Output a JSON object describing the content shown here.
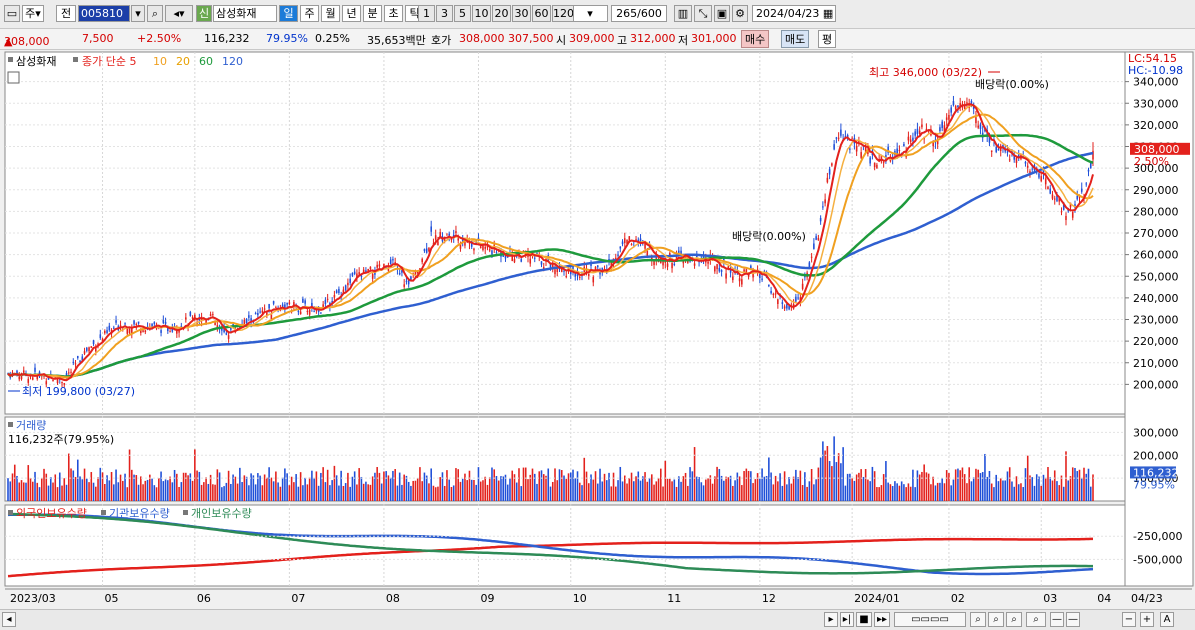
{
  "toolbar": {
    "period_day": "주",
    "prev": "전",
    "code": "005810",
    "name": "삼성화재",
    "market_badge": "신",
    "tabs": [
      "일",
      "주",
      "월",
      "년",
      "분",
      "초",
      "틱"
    ],
    "nums": [
      "1",
      "3",
      "5",
      "10",
      "20",
      "30",
      "60",
      "120"
    ],
    "count": "265",
    "count_max": "/600",
    "date": "2024/04/23"
  },
  "quote": {
    "price": "308,000",
    "arrow": "▲",
    "change": "7,500",
    "change_pct": "+2.50%",
    "volume": "116,232",
    "vol_ratio": "79.95%",
    "turnover": "0.25%",
    "amount": "35,653백만",
    "ask_label": "호가",
    "ask": "308,000",
    "bid": "307,500",
    "open_label": "시",
    "open": "309,000",
    "high_label": "고",
    "high": "312,000",
    "low_label": "저",
    "low": "301,000",
    "buy": "매수",
    "sell": "매도",
    "eval": "평"
  },
  "legend": {
    "name": "삼성화재",
    "series_label": "종가 단순",
    "ma": [
      "5",
      "10",
      "20",
      "60",
      "120"
    ]
  },
  "annotations": {
    "high": "최고 346,000 (03/22)",
    "low": "최저 199,800 (03/27)",
    "div1": "배당락(0.00%)",
    "div2": "배당락(0.00%)",
    "lc": "LC:54.15",
    "hc": "HC:-10.98",
    "price_tag": "308,000",
    "pct_tag": "2.50%"
  },
  "volume_panel": {
    "title": "거래량",
    "sub": "116,232주(79.95%)",
    "tag": "116,232",
    "tag_pct": "79.95%"
  },
  "holding_panel": {
    "legend": [
      "외국인보유수량",
      "기관보유수량",
      "개인보유수량"
    ]
  },
  "colors": {
    "up": "#e3211c",
    "down": "#1f4fd8",
    "ma5": "#e3211c",
    "ma10": "#f0a020",
    "ma20": "#f0a020",
    "ma60": "#1e9a3c",
    "ma120": "#2f5fd0",
    "foreign": "#e3211c",
    "inst": "#2f5fd0",
    "indiv": "#2e8b57"
  },
  "chart_data": {
    "type": "candlestick",
    "x_ticks": [
      "2023/03",
      "05",
      "06",
      "07",
      "08",
      "09",
      "10",
      "11",
      "12",
      "2024/01",
      "02",
      "03",
      "04",
      "04/23"
    ],
    "y_ticks": [
      "200,000",
      "210,000",
      "220,000",
      "230,000",
      "240,000",
      "250,000",
      "260,000",
      "270,000",
      "280,000",
      "290,000",
      "300,000",
      "310,000",
      "320,000",
      "330,000",
      "340,000"
    ],
    "ylim": [
      190000,
      350000
    ],
    "close_anchors": [
      [
        0,
        205000
      ],
      [
        15,
        204000
      ],
      [
        25,
        202000
      ],
      [
        35,
        216000
      ],
      [
        50,
        228000
      ],
      [
        70,
        226000
      ],
      [
        90,
        232000
      ],
      [
        95,
        223000
      ],
      [
        120,
        236000
      ],
      [
        140,
        235000
      ],
      [
        155,
        250000
      ],
      [
        172,
        255000
      ],
      [
        178,
        245000
      ],
      [
        188,
        268000
      ],
      [
        200,
        268000
      ],
      [
        215,
        262000
      ],
      [
        235,
        258000
      ],
      [
        250,
        252000
      ],
      [
        265,
        252000
      ],
      [
        275,
        268000
      ],
      [
        290,
        258000
      ],
      [
        310,
        258000
      ],
      [
        322,
        252000
      ],
      [
        335,
        250000
      ],
      [
        345,
        236000
      ],
      [
        350,
        236000
      ],
      [
        360,
        270000
      ],
      [
        368,
        315000
      ],
      [
        378,
        310000
      ],
      [
        385,
        303000
      ],
      [
        395,
        305000
      ],
      [
        405,
        318000
      ],
      [
        412,
        315000
      ],
      [
        420,
        328000
      ],
      [
        428,
        330000
      ],
      [
        435,
        312000
      ],
      [
        448,
        305000
      ],
      [
        458,
        298000
      ],
      [
        470,
        280000
      ],
      [
        478,
        287000
      ],
      [
        482,
        308000
      ]
    ],
    "volume_ticks": [
      "100,000",
      "200,000",
      "300,000"
    ],
    "volume_ylim": [
      0,
      350000
    ],
    "holding_ticks": [
      "-250,000",
      "-500,000"
    ],
    "last_price": 308000,
    "last_change_pct": 2.5,
    "last_volume": 116232
  }
}
